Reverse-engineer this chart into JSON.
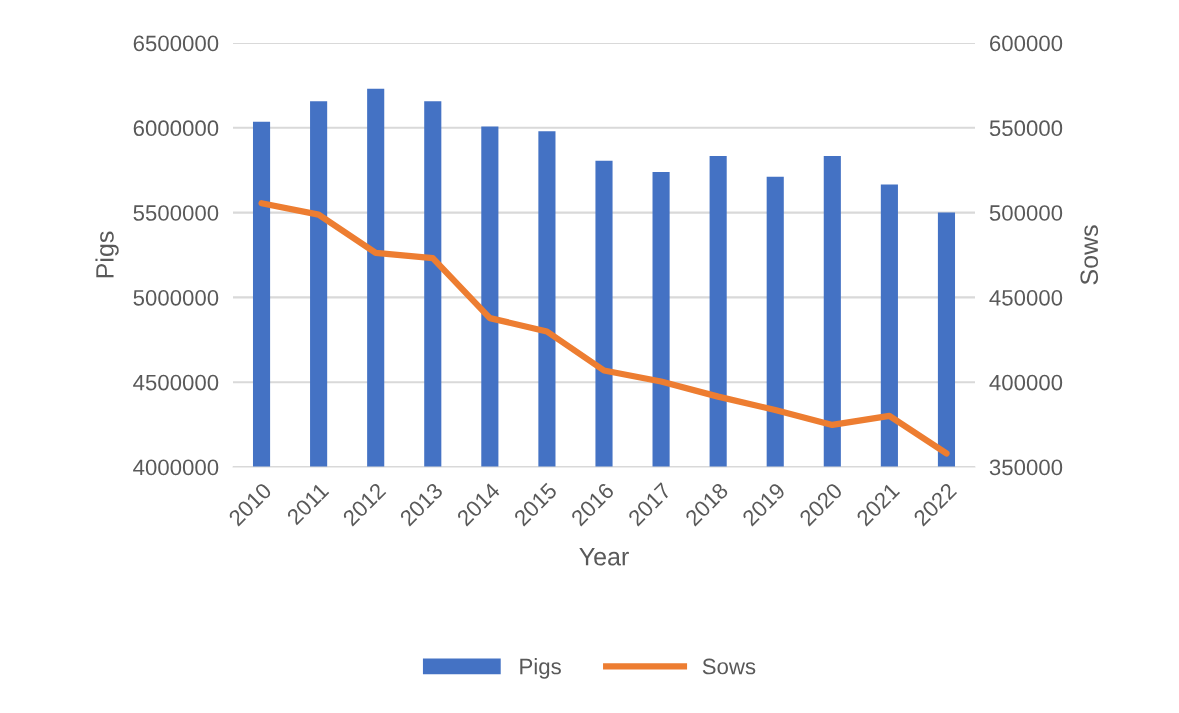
{
  "chart_data": {
    "type": "bar",
    "xlabel": "Year",
    "ylabel": "Pigs",
    "y2label": "Sows",
    "categories": [
      "2010",
      "2011",
      "2012",
      "2013",
      "2014",
      "2015",
      "2016",
      "2017",
      "2018",
      "2019",
      "2020",
      "2021",
      "2022"
    ],
    "series": [
      {
        "name": "Pigs",
        "color": "#4472c4",
        "values": [
          6035000,
          6157000,
          6230000,
          6157000,
          6008000,
          5980000,
          5805000,
          5740000,
          5833000,
          5712000,
          5833000,
          5665000,
          5500000
        ]
      },
      {
        "name": "Sows",
        "type": "line",
        "axis": "y2",
        "color": "#ed7d31",
        "values": [
          505500,
          498800,
          476200,
          473200,
          437800,
          429900,
          406900,
          400400,
          391500,
          383600,
          374800,
          380100,
          358000
        ]
      }
    ],
    "ylim": [
      4000000,
      6500000
    ],
    "yticks": [
      4000000,
      4500000,
      5000000,
      5500000,
      6000000,
      6500000
    ],
    "y2lim": [
      350000,
      600000
    ],
    "y2ticks": [
      350000,
      400000,
      450000,
      500000,
      550000,
      600000
    ],
    "grid": "y",
    "legend": "bottom",
    "marker": "none",
    "line_style": "solid"
  }
}
